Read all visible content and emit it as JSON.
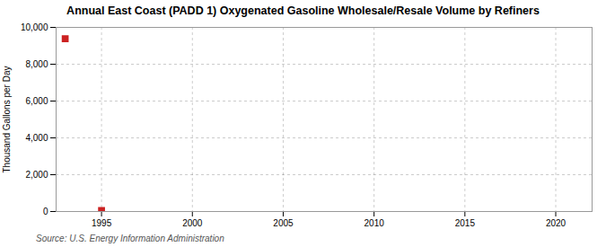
{
  "chart_data": {
    "type": "scatter",
    "title": "Annual East Coast (PADD 1) Oxygenated Gasoline Wholesale/Resale Volume by Refiners",
    "ylabel": "Thousand Gallons per Day",
    "source": "Source: U.S. Energy Information Administration",
    "x": [
      1993,
      1995
    ],
    "values": [
      9387,
      50
    ],
    "color": "#cc2222",
    "marker": "square",
    "xlim": [
      1992.5,
      2022
    ],
    "ylim": [
      0,
      10000
    ],
    "xticks": [
      1995,
      2000,
      2005,
      2010,
      2015,
      2020
    ],
    "yticks": [
      0,
      {
        "value": 2000,
        "label": "2,000"
      },
      {
        "value": 4000,
        "label": "4,000"
      },
      {
        "value": 6000,
        "label": "6,000"
      },
      {
        "value": 8000,
        "label": "8,000"
      },
      {
        "value": 10000,
        "label": "10,000"
      }
    ],
    "grid": true
  }
}
